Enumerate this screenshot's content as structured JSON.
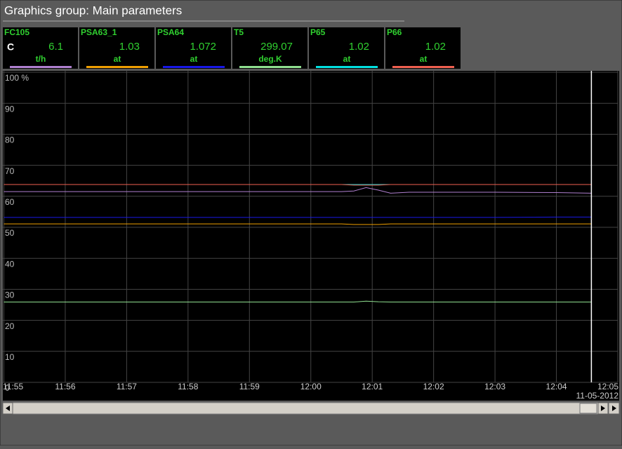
{
  "header": {
    "title": "Graphics group: Main parameters"
  },
  "status": "C",
  "chart_data": {
    "type": "line",
    "ylim": [
      0,
      100
    ],
    "yticks": [
      0,
      10,
      20,
      30,
      40,
      50,
      60,
      70,
      80,
      90,
      {
        "value": 100,
        "label": "100 %"
      }
    ],
    "xlim": [
      0,
      10
    ],
    "xticks": [
      {
        "value": 0,
        "label": "11:55"
      },
      {
        "value": 1,
        "label": "11:56"
      },
      {
        "value": 2,
        "label": "11:57"
      },
      {
        "value": 3,
        "label": "11:58"
      },
      {
        "value": 4,
        "label": "11:59"
      },
      {
        "value": 5,
        "label": "12:00"
      },
      {
        "value": 6,
        "label": "12:01"
      },
      {
        "value": 7,
        "label": "12:02"
      },
      {
        "value": 8,
        "label": "12:03"
      },
      {
        "value": 9,
        "label": "12:04"
      },
      {
        "value": 10,
        "label": "12:05"
      }
    ],
    "date": "11-05-2012",
    "cursor": 9.57,
    "grid": true,
    "x": [
      0,
      1,
      2,
      3,
      4,
      5,
      5.5,
      5.7,
      5.9,
      6.1,
      6.3,
      6.6,
      7,
      8,
      9,
      9.57
    ],
    "series": [
      {
        "name": "FC105",
        "current": 6.1,
        "unit": "t/h",
        "color": "#b080d0",
        "values": [
          61.5,
          61.5,
          61.5,
          61.5,
          61.5,
          61.5,
          61.5,
          61.7,
          62.8,
          62.0,
          61.0,
          61.3,
          61.3,
          61.3,
          61.2,
          61.0
        ]
      },
      {
        "name": "PSA63_1",
        "current": 1.03,
        "unit": "at",
        "color": "#f0a000",
        "values": [
          51.1,
          51.1,
          51.1,
          51.1,
          51.1,
          51.1,
          51.1,
          50.9,
          50.9,
          50.9,
          51.1,
          51.1,
          51.1,
          51.1,
          51.1,
          51.1
        ]
      },
      {
        "name": "PSA64",
        "current": 1.072,
        "unit": "at",
        "color": "#1818e8",
        "values": [
          53.2,
          53.2,
          53.2,
          53.2,
          53.2,
          53.2,
          53.2,
          53.2,
          53.2,
          53.2,
          53.2,
          53.2,
          53.2,
          53.2,
          53.3,
          53.3
        ]
      },
      {
        "name": "T5",
        "current": 299.07,
        "unit": "deg.K",
        "color": "#90e090",
        "values": [
          25.9,
          25.9,
          25.9,
          25.9,
          25.9,
          25.9,
          25.9,
          25.9,
          26.2,
          26.0,
          25.9,
          25.9,
          25.9,
          25.9,
          25.9,
          25.9
        ]
      },
      {
        "name": "P65",
        "current": 1.02,
        "unit": "at",
        "color": "#00e0e0",
        "values": [
          63.8,
          63.8,
          63.8,
          63.8,
          63.8,
          63.8,
          63.8,
          63.8,
          63.8,
          63.8,
          63.8,
          63.8,
          63.8,
          63.8,
          63.8,
          63.8
        ]
      },
      {
        "name": "P66",
        "current": 1.02,
        "unit": "at",
        "color": "#f06050",
        "values": [
          63.8,
          63.8,
          63.8,
          63.8,
          63.8,
          63.8,
          63.8,
          63.6,
          63.6,
          63.6,
          63.8,
          63.8,
          63.8,
          63.8,
          63.8,
          63.8
        ]
      }
    ]
  }
}
